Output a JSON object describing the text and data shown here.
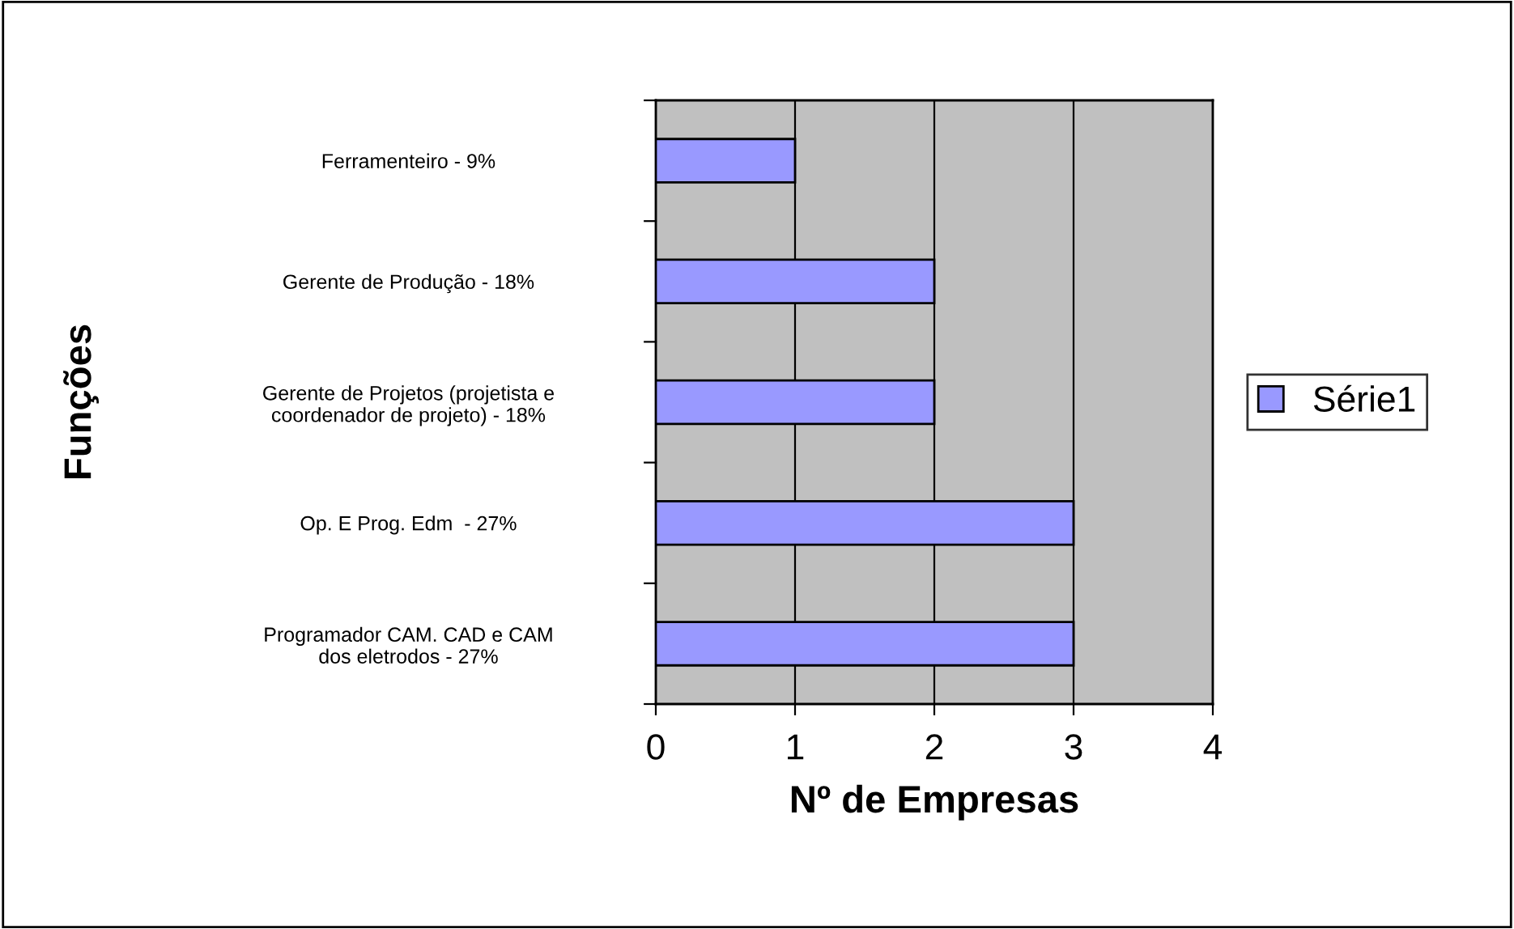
{
  "chart_data": {
    "type": "bar",
    "orientation": "horizontal",
    "xlabel": "Nº de Empresas",
    "ylabel": "Funções",
    "categories": [
      "Ferramenteiro - 9%",
      "Gerente de Produção - 18%",
      "Gerente de Projetos (projetista e\ncoordenador de projeto) - 18%",
      "Op. E Prog. Edm  - 27%",
      "Programador CAM. CAD e CAM\ndos eletrodos - 27%"
    ],
    "series": [
      {
        "name": "Série1",
        "color": "#9999ff",
        "values": [
          1,
          2,
          2,
          3,
          3
        ]
      }
    ],
    "xlim": [
      0,
      4
    ],
    "xticks": [
      0,
      1,
      2,
      3,
      4
    ],
    "grid": "x",
    "legend": "right"
  }
}
